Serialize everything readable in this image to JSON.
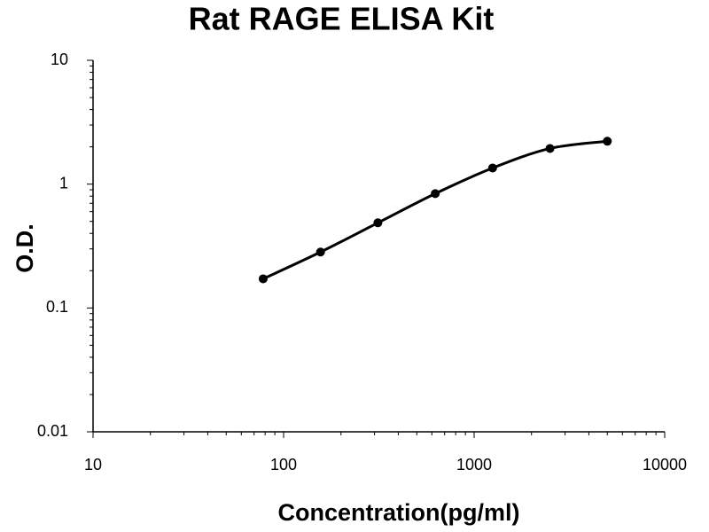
{
  "chart_data": {
    "type": "line",
    "title": "Rat RAGE ELISA Kit",
    "x_label": "Concentration(pg/ml)",
    "y_label": "O.D.",
    "x": [
      78.125,
      156.25,
      312.5,
      625,
      1250,
      2500,
      5000
    ],
    "values": [
      0.172,
      0.283,
      0.487,
      0.838,
      1.35,
      1.94,
      2.22
    ],
    "color": "#000000",
    "smooth": true,
    "markers": true,
    "x_log": true,
    "y_log": true,
    "grid": false,
    "xlim": [
      10,
      10000
    ],
    "xticks": [
      10,
      100,
      1000,
      10000
    ],
    "ylim": [
      0.01,
      10
    ],
    "yticks": [
      0.01,
      0.1,
      1,
      10
    ]
  }
}
